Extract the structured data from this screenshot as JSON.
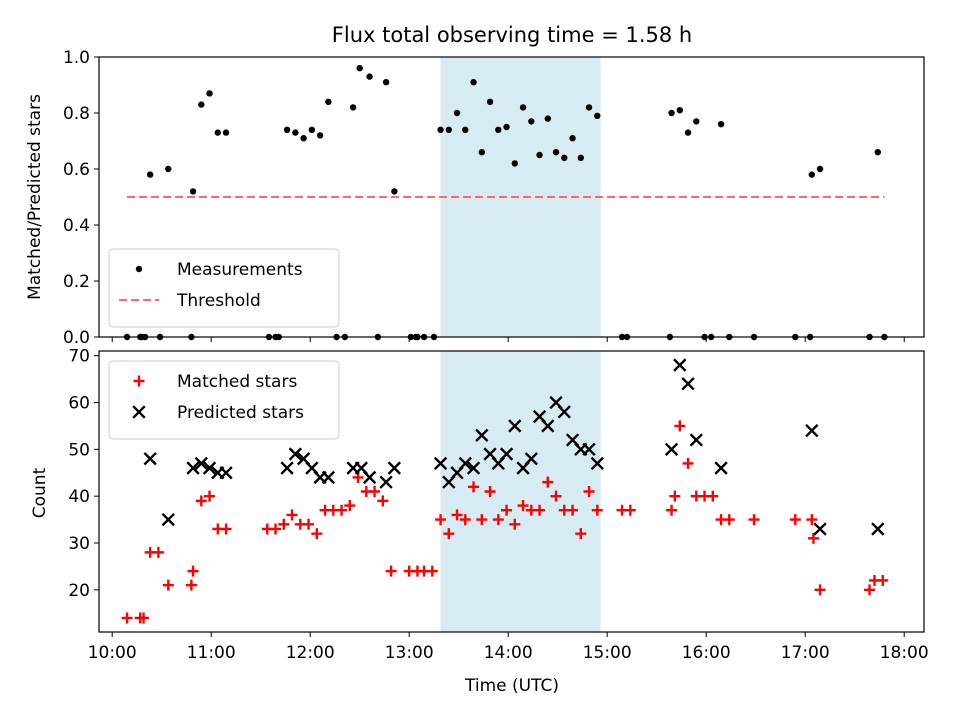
{
  "chart_data": [
    {
      "type": "scatter",
      "title": "Flux total observing time = 1.58 h",
      "ylabel": "Matched/Predicted stars",
      "xlabel": "",
      "xlim": [
        "09:52",
        "18:12"
      ],
      "ylim": [
        0,
        1
      ],
      "x_ticks": [
        "10:00",
        "11:00",
        "12:00",
        "13:00",
        "14:00",
        "15:00",
        "16:00",
        "17:00",
        "18:00"
      ],
      "y_ticks": [
        "0.0",
        "0.2",
        "0.4",
        "0.6",
        "0.8",
        "1.0"
      ],
      "shaded_span": {
        "start": "13:19",
        "end": "14:56",
        "color": "#add8e6"
      },
      "legend": {
        "position": "lower-left",
        "entries": [
          "Measurements",
          "Threshold"
        ]
      },
      "threshold": {
        "name": "Threshold",
        "value": 0.5,
        "x_start": "10:09",
        "x_end": "17:48",
        "color": "#ff6666",
        "style": "dashed"
      },
      "series": [
        {
          "name": "Measurements",
          "color": "#000000",
          "marker": "dot",
          "points": [
            [
              "10:09",
              0
            ],
            [
              "10:17",
              0
            ],
            [
              "10:18",
              0
            ],
            [
              "10:20",
              0
            ],
            [
              "10:23",
              0.58
            ],
            [
              "10:29",
              0
            ],
            [
              "10:34",
              0.6
            ],
            [
              "10:48",
              0
            ],
            [
              "10:49",
              0.52
            ],
            [
              "10:54",
              0.83
            ],
            [
              "10:59",
              0.87
            ],
            [
              "11:04",
              0.73
            ],
            [
              "11:09",
              0.73
            ],
            [
              "11:35",
              0
            ],
            [
              "11:39",
              0
            ],
            [
              "11:41",
              0
            ],
            [
              "11:46",
              0.74
            ],
            [
              "11:51",
              0.73
            ],
            [
              "11:56",
              0.71
            ],
            [
              "12:01",
              0.74
            ],
            [
              "12:06",
              0.72
            ],
            [
              "12:11",
              0.84
            ],
            [
              "12:16",
              0
            ],
            [
              "12:21",
              0
            ],
            [
              "12:26",
              0.82
            ],
            [
              "12:30",
              0.96
            ],
            [
              "12:36",
              0.93
            ],
            [
              "12:41",
              0
            ],
            [
              "12:46",
              0.91
            ],
            [
              "12:51",
              0.52
            ],
            [
              "13:01",
              0
            ],
            [
              "13:04",
              0
            ],
            [
              "13:05",
              0
            ],
            [
              "13:09",
              0
            ],
            [
              "13:15",
              0
            ],
            [
              "13:19",
              0.74
            ],
            [
              "13:24",
              0.74
            ],
            [
              "13:29",
              0.8
            ],
            [
              "13:34",
              0.74
            ],
            [
              "13:39",
              0.91
            ],
            [
              "13:44",
              0.66
            ],
            [
              "13:49",
              0.84
            ],
            [
              "13:54",
              0.74
            ],
            [
              "13:59",
              0.75
            ],
            [
              "14:04",
              0.62
            ],
            [
              "14:09",
              0.82
            ],
            [
              "14:14",
              0.77
            ],
            [
              "14:19",
              0.65
            ],
            [
              "14:24",
              0.78
            ],
            [
              "14:29",
              0.66
            ],
            [
              "14:34",
              0.64
            ],
            [
              "14:39",
              0.71
            ],
            [
              "14:44",
              0.64
            ],
            [
              "14:49",
              0.82
            ],
            [
              "14:54",
              0.79
            ],
            [
              "15:09",
              0
            ],
            [
              "15:12",
              0
            ],
            [
              "15:38",
              0
            ],
            [
              "15:39",
              0.8
            ],
            [
              "15:44",
              0.81
            ],
            [
              "15:49",
              0.73
            ],
            [
              "15:54",
              0.77
            ],
            [
              "15:59",
              0
            ],
            [
              "16:03",
              0
            ],
            [
              "16:09",
              0.76
            ],
            [
              "16:14",
              0
            ],
            [
              "16:29",
              0
            ],
            [
              "16:54",
              0
            ],
            [
              "17:03",
              0
            ],
            [
              "17:04",
              0.58
            ],
            [
              "17:09",
              0.6
            ],
            [
              "17:39",
              0
            ],
            [
              "17:44",
              0.66
            ],
            [
              "17:48",
              0
            ]
          ]
        }
      ]
    },
    {
      "type": "scatter",
      "title": "",
      "ylabel": "Count",
      "xlabel": "Time (UTC)",
      "xlim": [
        "09:52",
        "18:12"
      ],
      "ylim": [
        11,
        71
      ],
      "x_ticks": [
        "10:00",
        "11:00",
        "12:00",
        "13:00",
        "14:00",
        "15:00",
        "16:00",
        "17:00",
        "18:00"
      ],
      "y_ticks": [
        "20",
        "30",
        "40",
        "50",
        "60",
        "70"
      ],
      "shaded_span": {
        "start": "13:19",
        "end": "14:56",
        "color": "#add8e6"
      },
      "legend": {
        "position": "upper-left",
        "entries": [
          "Matched stars",
          "Predicted stars"
        ]
      },
      "series": [
        {
          "name": "Matched stars",
          "color": "#ff0000",
          "marker": "plus",
          "points": [
            [
              "10:09",
              14
            ],
            [
              "10:17",
              14
            ],
            [
              "10:19",
              14
            ],
            [
              "10:23",
              28
            ],
            [
              "10:28",
              28
            ],
            [
              "10:34",
              21
            ],
            [
              "10:48",
              21
            ],
            [
              "10:49",
              24
            ],
            [
              "10:54",
              39
            ],
            [
              "10:59",
              40
            ],
            [
              "11:04",
              33
            ],
            [
              "11:09",
              33
            ],
            [
              "11:34",
              33
            ],
            [
              "11:39",
              33
            ],
            [
              "11:44",
              34
            ],
            [
              "11:49",
              36
            ],
            [
              "11:54",
              34
            ],
            [
              "11:59",
              34
            ],
            [
              "12:04",
              32
            ],
            [
              "12:09",
              37
            ],
            [
              "12:14",
              37
            ],
            [
              "12:19",
              37
            ],
            [
              "12:24",
              38
            ],
            [
              "12:29",
              44
            ],
            [
              "12:34",
              41
            ],
            [
              "12:39",
              41
            ],
            [
              "12:44",
              39
            ],
            [
              "12:49",
              24
            ],
            [
              "13:00",
              24
            ],
            [
              "13:05",
              24
            ],
            [
              "13:09",
              24
            ],
            [
              "13:14",
              24
            ],
            [
              "13:19",
              35
            ],
            [
              "13:24",
              32
            ],
            [
              "13:29",
              36
            ],
            [
              "13:34",
              35
            ],
            [
              "13:39",
              42
            ],
            [
              "13:44",
              35
            ],
            [
              "13:49",
              41
            ],
            [
              "13:54",
              35
            ],
            [
              "13:59",
              37
            ],
            [
              "14:04",
              34
            ],
            [
              "14:09",
              38
            ],
            [
              "14:14",
              37
            ],
            [
              "14:19",
              37
            ],
            [
              "14:24",
              43
            ],
            [
              "14:29",
              40
            ],
            [
              "14:34",
              37
            ],
            [
              "14:39",
              37
            ],
            [
              "14:44",
              32
            ],
            [
              "14:49",
              41
            ],
            [
              "14:54",
              37
            ],
            [
              "15:09",
              37
            ],
            [
              "15:14",
              37
            ],
            [
              "15:39",
              37
            ],
            [
              "15:41",
              40
            ],
            [
              "15:44",
              55
            ],
            [
              "15:49",
              47
            ],
            [
              "15:54",
              40
            ],
            [
              "15:59",
              40
            ],
            [
              "16:04",
              40
            ],
            [
              "16:09",
              35
            ],
            [
              "16:14",
              35
            ],
            [
              "16:29",
              35
            ],
            [
              "16:54",
              35
            ],
            [
              "17:04",
              35
            ],
            [
              "17:05",
              31
            ],
            [
              "17:09",
              20
            ],
            [
              "17:39",
              20
            ],
            [
              "17:42",
              22
            ],
            [
              "17:47",
              22
            ]
          ]
        },
        {
          "name": "Predicted stars",
          "color": "#000000",
          "marker": "x",
          "points": [
            [
              "10:23",
              48
            ],
            [
              "10:34",
              35
            ],
            [
              "10:49",
              46
            ],
            [
              "10:54",
              47
            ],
            [
              "10:59",
              46
            ],
            [
              "11:04",
              45
            ],
            [
              "11:09",
              45
            ],
            [
              "11:46",
              46
            ],
            [
              "11:51",
              49
            ],
            [
              "11:56",
              48
            ],
            [
              "12:01",
              46
            ],
            [
              "12:06",
              44
            ],
            [
              "12:11",
              44
            ],
            [
              "12:26",
              46
            ],
            [
              "12:31",
              46
            ],
            [
              "12:36",
              44
            ],
            [
              "12:46",
              43
            ],
            [
              "12:51",
              46
            ],
            [
              "13:19",
              47
            ],
            [
              "13:24",
              43
            ],
            [
              "13:29",
              45
            ],
            [
              "13:34",
              47
            ],
            [
              "13:39",
              46
            ],
            [
              "13:44",
              53
            ],
            [
              "13:49",
              49
            ],
            [
              "13:54",
              47
            ],
            [
              "13:59",
              49
            ],
            [
              "14:04",
              55
            ],
            [
              "14:09",
              46
            ],
            [
              "14:14",
              48
            ],
            [
              "14:19",
              57
            ],
            [
              "14:24",
              55
            ],
            [
              "14:29",
              60
            ],
            [
              "14:34",
              58
            ],
            [
              "14:39",
              52
            ],
            [
              "14:44",
              50
            ],
            [
              "14:49",
              50
            ],
            [
              "14:54",
              47
            ],
            [
              "15:39",
              50
            ],
            [
              "15:44",
              68
            ],
            [
              "15:49",
              64
            ],
            [
              "15:54",
              52
            ],
            [
              "16:09",
              46
            ],
            [
              "17:04",
              54
            ],
            [
              "17:09",
              33
            ],
            [
              "17:44",
              33
            ]
          ]
        }
      ]
    }
  ]
}
